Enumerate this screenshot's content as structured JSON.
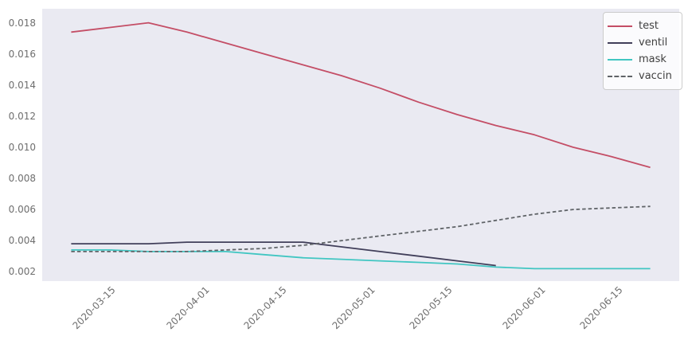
{
  "figure": {
    "background": "#ffffff",
    "plot_background": "#eaeaf2",
    "tick_color": "#6e6e6e",
    "legend_text_color": "#3f3f3f"
  },
  "chart_data": {
    "type": "line",
    "title": "",
    "xlabel": "",
    "ylabel": "",
    "grid": false,
    "legend_position": "top-right",
    "x": [
      "2020-03-08",
      "2020-03-15",
      "2020-03-22",
      "2020-03-29",
      "2020-04-05",
      "2020-04-12",
      "2020-04-19",
      "2020-04-26",
      "2020-05-03",
      "2020-05-10",
      "2020-05-17",
      "2020-05-24",
      "2020-05-31",
      "2020-06-07",
      "2020-06-14",
      "2020-06-21"
    ],
    "xticks": [
      "2020-03-15",
      "2020-04-01",
      "2020-04-15",
      "2020-05-01",
      "2020-05-15",
      "2020-06-01",
      "2020-06-15"
    ],
    "yticks": [
      0.002,
      0.004,
      0.006,
      0.008,
      0.01,
      0.012,
      0.014,
      0.016,
      0.018
    ],
    "ylim": [
      0.0014,
      0.0189
    ],
    "series": [
      {
        "name": "test",
        "color": "#c44e66",
        "style": "solid",
        "values": [
          0.0174,
          0.0177,
          0.018,
          0.0174,
          0.0167,
          0.016,
          0.0153,
          0.0146,
          0.0138,
          0.0129,
          0.0121,
          0.0114,
          0.0108,
          0.01,
          0.0094,
          0.0087
        ]
      },
      {
        "name": "ventil",
        "color": "#413f5a",
        "style": "solid",
        "values": [
          0.0038,
          0.0038,
          0.0038,
          0.0039,
          0.0039,
          0.0039,
          0.0039,
          0.0036,
          0.0033,
          0.003,
          0.0027,
          0.0024,
          null,
          null,
          null,
          null
        ]
      },
      {
        "name": "mask",
        "color": "#41c6c2",
        "style": "solid",
        "values": [
          0.0034,
          0.0034,
          0.0033,
          0.0033,
          0.0033,
          0.0031,
          0.0029,
          0.0028,
          0.0027,
          0.0026,
          0.0025,
          0.0023,
          0.0022,
          0.0022,
          0.0022,
          0.0022
        ]
      },
      {
        "name": "vaccin",
        "color": "#606468",
        "style": "dashed",
        "values": [
          0.0033,
          0.0033,
          0.0033,
          0.0033,
          0.0034,
          0.0035,
          0.0037,
          0.004,
          0.0043,
          0.0046,
          0.0049,
          0.0053,
          0.0057,
          0.006,
          0.0061,
          0.0062
        ]
      }
    ]
  }
}
